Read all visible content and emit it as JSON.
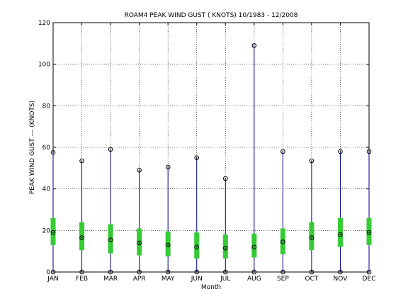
{
  "chart_data": {
    "type": "box",
    "title": "ROAM4  PEAK WIND GUST ( KNOTS) 10/1983 - 12/2008",
    "xlabel": "Month",
    "ylabel": "PEAK WIND GUST --- (KNOTS)",
    "ylim": [
      0,
      120
    ],
    "yticks": [
      0,
      20,
      40,
      60,
      80,
      100,
      120
    ],
    "grid": true,
    "categories": [
      "JAN",
      "FEB",
      "MAR",
      "APR",
      "MAY",
      "JUN",
      "JUL",
      "AUG",
      "SEP",
      "OCT",
      "NOV",
      "DEC"
    ],
    "series": [
      {
        "min": [
          0,
          0,
          0,
          0,
          0,
          0,
          0,
          0,
          0,
          0,
          0,
          0
        ],
        "max": [
          57.5,
          53.5,
          59,
          49,
          50.5,
          55,
          45,
          109,
          58,
          53.5,
          58,
          58
        ],
        "q1": [
          13,
          10.5,
          9,
          8,
          7.5,
          6.5,
          6.5,
          7,
          8.5,
          10.5,
          12,
          13
        ],
        "q3": [
          26,
          24,
          23,
          21,
          19.5,
          19,
          18,
          18.5,
          21,
          24,
          26,
          26
        ],
        "mean": [
          19,
          16.5,
          15.5,
          14,
          13,
          12,
          11.5,
          12,
          14.5,
          16.5,
          18,
          19
        ]
      }
    ],
    "colors": {
      "range_line": "#00008b",
      "iqr_box": "#33cc33",
      "marker": "#000000"
    }
  }
}
